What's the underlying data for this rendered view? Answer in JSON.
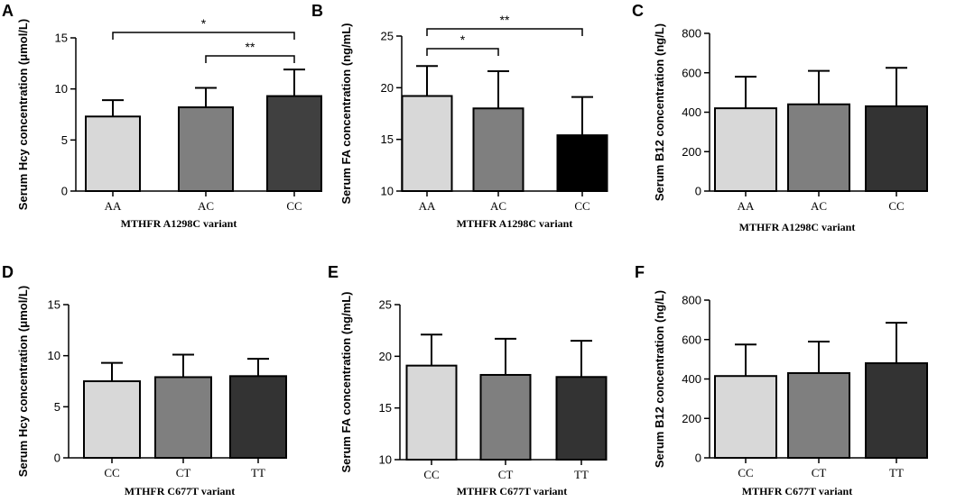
{
  "chart_data": [
    {
      "panel": "A",
      "type": "bar",
      "ylabel": "Serum Hcy concentration (μmol/L)",
      "xlabel": "MTHFR A1298C variant",
      "categories": [
        "AA",
        "AC",
        "CC"
      ],
      "values": [
        7.3,
        8.2,
        9.3
      ],
      "errors": [
        1.6,
        1.9,
        2.6
      ],
      "ylim": [
        0,
        15
      ],
      "yticks": [
        0,
        5,
        10,
        15
      ],
      "bar_colors": [
        "#d8d8d8",
        "#7f7f7f",
        "#404040"
      ],
      "significance": [
        {
          "from": 0,
          "to": 2,
          "label": "*"
        },
        {
          "from": 1,
          "to": 2,
          "label": "**"
        }
      ]
    },
    {
      "panel": "B",
      "type": "bar",
      "ylabel": "Serum FA concentration (ng/mL)",
      "xlabel": "MTHFR A1298C variant",
      "categories": [
        "AA",
        "AC",
        "CC"
      ],
      "values": [
        19.2,
        18.0,
        15.4
      ],
      "errors": [
        2.9,
        3.6,
        3.7
      ],
      "ylim": [
        10,
        25
      ],
      "yticks": [
        10,
        15,
        20,
        25
      ],
      "bar_colors": [
        "#d8d8d8",
        "#7f7f7f",
        "#000000"
      ],
      "significance": [
        {
          "from": 0,
          "to": 1,
          "label": "*"
        },
        {
          "from": 0,
          "to": 2,
          "label": "**"
        }
      ]
    },
    {
      "panel": "C",
      "type": "bar",
      "ylabel": "Serum B12 concentration (ng/L)",
      "xlabel": "MTHFR A1298C variant",
      "categories": [
        "AA",
        "AC",
        "CC"
      ],
      "values": [
        420,
        440,
        430
      ],
      "errors": [
        160,
        170,
        195
      ],
      "ylim": [
        0,
        800
      ],
      "yticks": [
        0,
        200,
        400,
        600,
        800
      ],
      "bar_colors": [
        "#d8d8d8",
        "#7f7f7f",
        "#333333"
      ],
      "significance": []
    },
    {
      "panel": "D",
      "type": "bar",
      "ylabel": "Serum Hcy concentration (μmol/L)",
      "xlabel": "MTHFR C677T variant",
      "categories": [
        "CC",
        "CT",
        "TT"
      ],
      "values": [
        7.5,
        7.9,
        8.0
      ],
      "errors": [
        1.8,
        2.2,
        1.7
      ],
      "ylim": [
        0,
        15
      ],
      "yticks": [
        0,
        5,
        10,
        15
      ],
      "bar_colors": [
        "#d8d8d8",
        "#7f7f7f",
        "#333333"
      ],
      "significance": []
    },
    {
      "panel": "E",
      "type": "bar",
      "ylabel": "Serum FA concentration (ng/mL)",
      "xlabel": "MTHFR C677T variant",
      "categories": [
        "CC",
        "CT",
        "TT"
      ],
      "values": [
        19.1,
        18.2,
        18.0
      ],
      "errors": [
        3.0,
        3.5,
        3.5
      ],
      "ylim": [
        10,
        25
      ],
      "yticks": [
        10,
        15,
        20,
        25
      ],
      "bar_colors": [
        "#d8d8d8",
        "#7f7f7f",
        "#333333"
      ],
      "significance": []
    },
    {
      "panel": "F",
      "type": "bar",
      "ylabel": "Serum B12 concentration (ng/L)",
      "xlabel": "MTHFR C677T variant",
      "categories": [
        "CC",
        "CT",
        "TT"
      ],
      "values": [
        415,
        430,
        480
      ],
      "errors": [
        160,
        160,
        205
      ],
      "ylim": [
        0,
        800
      ],
      "yticks": [
        0,
        200,
        400,
        600,
        800
      ],
      "bar_colors": [
        "#d8d8d8",
        "#7f7f7f",
        "#333333"
      ],
      "significance": []
    }
  ]
}
